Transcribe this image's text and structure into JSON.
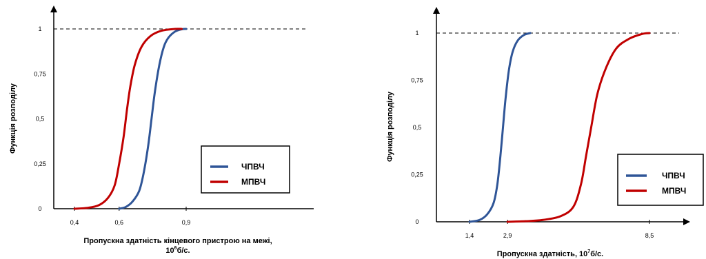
{
  "chart_data": [
    {
      "type": "line",
      "xlabel_line1": "Пропускна здатність кінцевого пристрою на межі,",
      "xlabel_line2_base": "10",
      "xlabel_line2_exp": "6",
      "xlabel_line2_unit": "б/с.",
      "ylabel": "Функція розподілу",
      "x_ticks": [
        "0,4",
        "0,6",
        "0,9"
      ],
      "x_tick_values": [
        0.4,
        0.6,
        0.9
      ],
      "y_ticks": [
        "0",
        "0,25",
        "0,5",
        "0,75",
        "1"
      ],
      "y_tick_values": [
        0,
        0.25,
        0.5,
        0.75,
        1
      ],
      "xlim": [
        0.4,
        0.9
      ],
      "ylim": [
        0,
        1
      ],
      "reference_line_y": 1,
      "legend_position": "right",
      "series": [
        {
          "name": "ЧПВЧ",
          "color": "#2f5597",
          "x": [
            0.6,
            0.63,
            0.66,
            0.69,
            0.71,
            0.73,
            0.745,
            0.76,
            0.78,
            0.8,
            0.82,
            0.85,
            0.88,
            0.9
          ],
          "y": [
            0,
            0.01,
            0.04,
            0.1,
            0.2,
            0.35,
            0.5,
            0.65,
            0.8,
            0.9,
            0.95,
            0.985,
            0.998,
            1
          ]
        },
        {
          "name": "МПВЧ",
          "color": "#c00000",
          "x": [
            0.4,
            0.46,
            0.51,
            0.55,
            0.58,
            0.6,
            0.62,
            0.635,
            0.65,
            0.67,
            0.7,
            0.74,
            0.79,
            0.85,
            0.88
          ],
          "y": [
            0,
            0.005,
            0.02,
            0.06,
            0.13,
            0.25,
            0.4,
            0.55,
            0.68,
            0.8,
            0.9,
            0.96,
            0.99,
            1,
            1
          ]
        }
      ]
    },
    {
      "type": "line",
      "xlabel_base": "Пропускна здатність, 10",
      "xlabel_exp": "7",
      "xlabel_unit": "б/с.",
      "ylabel": "Функція розподілу",
      "x_ticks": [
        "1,4",
        "2,9",
        "8,5"
      ],
      "x_tick_values": [
        1.4,
        2.9,
        8.5
      ],
      "y_ticks": [
        "0",
        "0,25",
        "0,5",
        "0,75",
        "1"
      ],
      "y_tick_values": [
        0,
        0.25,
        0.5,
        0.75,
        1
      ],
      "xlim": [
        0.5,
        9.5
      ],
      "ylim": [
        0,
        1
      ],
      "reference_line_y": 1,
      "legend_position": "right",
      "series": [
        {
          "name": "ЧПВЧ",
          "color": "#2f5597",
          "x": [
            1.4,
            1.8,
            2.1,
            2.35,
            2.5,
            2.62,
            2.72,
            2.82,
            2.95,
            3.1,
            3.3,
            3.55,
            3.8
          ],
          "y": [
            0,
            0.01,
            0.04,
            0.1,
            0.2,
            0.35,
            0.5,
            0.65,
            0.8,
            0.9,
            0.96,
            0.99,
            1
          ]
        },
        {
          "name": "МПВЧ",
          "color": "#c00000",
          "x": [
            2.9,
            3.6,
            4.3,
            5.0,
            5.5,
            5.8,
            6.0,
            6.2,
            6.45,
            6.8,
            7.2,
            7.7,
            8.2,
            8.5
          ],
          "y": [
            0,
            0.003,
            0.01,
            0.03,
            0.08,
            0.2,
            0.35,
            0.5,
            0.68,
            0.82,
            0.92,
            0.97,
            0.995,
            1
          ]
        }
      ]
    }
  ]
}
